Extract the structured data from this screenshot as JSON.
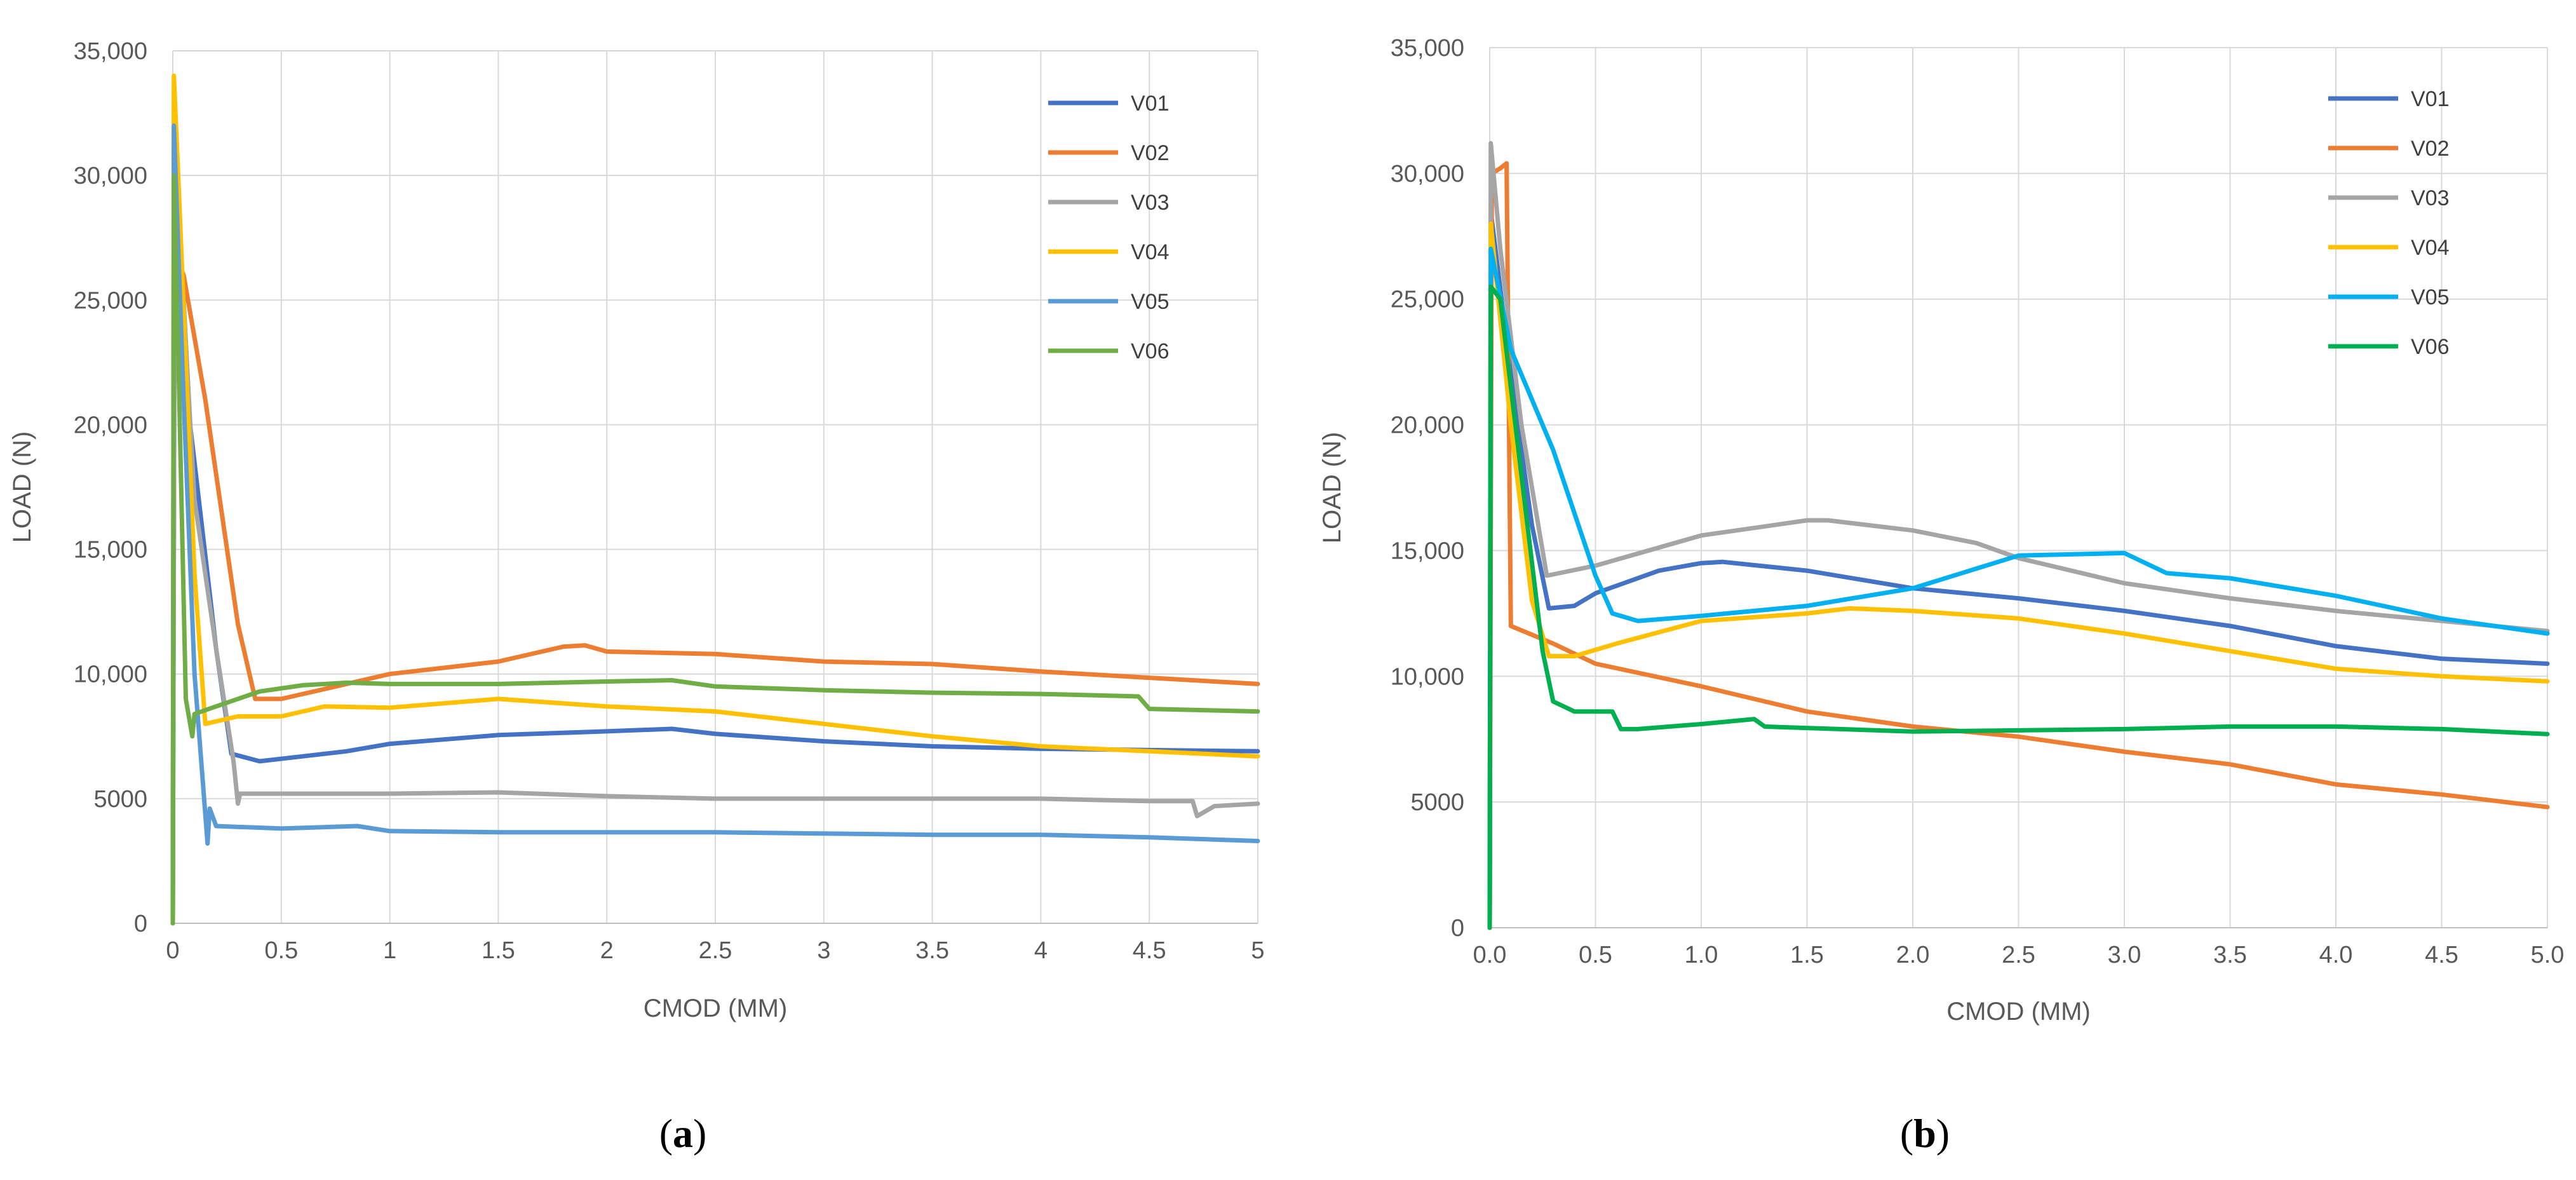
{
  "chart_data": [
    {
      "type": "line",
      "caption_open": "(",
      "caption_letter": "a",
      "caption_close": ")",
      "xlabel": "CMOD (MM)",
      "ylabel": "LOAD (N)",
      "xlim": [
        0,
        5
      ],
      "ylim": [
        0,
        35000
      ],
      "grid": true,
      "legend_position": "top-right",
      "xticks": [
        0,
        0.5,
        1,
        1.5,
        2,
        2.5,
        3,
        3.5,
        4,
        4.5,
        5
      ],
      "xtick_labels": [
        "0",
        "0.5",
        "1",
        "1.5",
        "2",
        "2.5",
        "3",
        "3.5",
        "4",
        "4.5",
        "5"
      ],
      "yticks": [
        0,
        5000,
        10000,
        15000,
        20000,
        25000,
        30000,
        35000
      ],
      "ytick_labels": [
        "0",
        "5000",
        "10,000",
        "15,000",
        "20,000",
        "25,000",
        "30,000",
        "35,000"
      ],
      "series": [
        {
          "name": "V01",
          "color": "#4472C4",
          "points": [
            [
              0,
              0
            ],
            [
              0.01,
              31500
            ],
            [
              0.08,
              20000
            ],
            [
              0.2,
              11000
            ],
            [
              0.27,
              6800
            ],
            [
              0.4,
              6500
            ],
            [
              0.6,
              6700
            ],
            [
              0.8,
              6900
            ],
            [
              1,
              7200
            ],
            [
              1.5,
              7550
            ],
            [
              2,
              7700
            ],
            [
              2.3,
              7800
            ],
            [
              2.5,
              7600
            ],
            [
              3,
              7300
            ],
            [
              3.5,
              7100
            ],
            [
              4,
              7000
            ],
            [
              4.5,
              6950
            ],
            [
              5,
              6900
            ]
          ]
        },
        {
          "name": "V02",
          "color": "#ED7D31",
          "points": [
            [
              0,
              0
            ],
            [
              0.005,
              27000
            ],
            [
              0.05,
              26000
            ],
            [
              0.15,
              21000
            ],
            [
              0.3,
              12000
            ],
            [
              0.38,
              9000
            ],
            [
              0.5,
              9000
            ],
            [
              0.7,
              9400
            ],
            [
              1,
              10000
            ],
            [
              1.5,
              10500
            ],
            [
              1.8,
              11100
            ],
            [
              1.9,
              11150
            ],
            [
              2,
              10900
            ],
            [
              2.5,
              10800
            ],
            [
              3,
              10500
            ],
            [
              3.5,
              10400
            ],
            [
              4,
              10100
            ],
            [
              4.5,
              9850
            ],
            [
              5,
              9600
            ]
          ]
        },
        {
          "name": "V03",
          "color": "#A5A5A5",
          "points": [
            [
              0,
              0
            ],
            [
              0.01,
              31000
            ],
            [
              0.1,
              17000
            ],
            [
              0.2,
              11000
            ],
            [
              0.28,
              6500
            ],
            [
              0.3,
              4800
            ],
            [
              0.31,
              5200
            ],
            [
              0.5,
              5200
            ],
            [
              1,
              5200
            ],
            [
              1.5,
              5250
            ],
            [
              2,
              5100
            ],
            [
              2.5,
              5000
            ],
            [
              3,
              5000
            ],
            [
              3.5,
              5000
            ],
            [
              4,
              5000
            ],
            [
              4.5,
              4900
            ],
            [
              4.7,
              4900
            ],
            [
              4.72,
              4300
            ],
            [
              4.8,
              4700
            ],
            [
              5,
              4800
            ]
          ]
        },
        {
          "name": "V04",
          "color": "#FFC000",
          "points": [
            [
              0,
              0
            ],
            [
              0.005,
              34000
            ],
            [
              0.03,
              29000
            ],
            [
              0.1,
              14000
            ],
            [
              0.15,
              8000
            ],
            [
              0.3,
              8300
            ],
            [
              0.5,
              8300
            ],
            [
              0.7,
              8700
            ],
            [
              1,
              8650
            ],
            [
              1.5,
              9000
            ],
            [
              2,
              8700
            ],
            [
              2.5,
              8500
            ],
            [
              3,
              8000
            ],
            [
              3.5,
              7500
            ],
            [
              4,
              7100
            ],
            [
              4.5,
              6900
            ],
            [
              5,
              6700
            ]
          ]
        },
        {
          "name": "V05",
          "color": "#5B9BD5",
          "points": [
            [
              0,
              0
            ],
            [
              0.005,
              32000
            ],
            [
              0.05,
              21000
            ],
            [
              0.1,
              10000
            ],
            [
              0.14,
              5500
            ],
            [
              0.16,
              3200
            ],
            [
              0.17,
              4600
            ],
            [
              0.2,
              3900
            ],
            [
              0.5,
              3800
            ],
            [
              0.85,
              3900
            ],
            [
              1,
              3700
            ],
            [
              1.5,
              3650
            ],
            [
              2,
              3650
            ],
            [
              2.5,
              3650
            ],
            [
              3,
              3600
            ],
            [
              3.5,
              3550
            ],
            [
              4,
              3550
            ],
            [
              4.5,
              3450
            ],
            [
              5,
              3300
            ]
          ]
        },
        {
          "name": "V06",
          "color": "#70AD47",
          "points": [
            [
              0,
              0
            ],
            [
              0.005,
              30000
            ],
            [
              0.02,
              25000
            ],
            [
              0.06,
              9000
            ],
            [
              0.09,
              7500
            ],
            [
              0.1,
              8400
            ],
            [
              0.2,
              8700
            ],
            [
              0.4,
              9300
            ],
            [
              0.6,
              9550
            ],
            [
              0.8,
              9650
            ],
            [
              1,
              9600
            ],
            [
              1.5,
              9600
            ],
            [
              2,
              9700
            ],
            [
              2.3,
              9750
            ],
            [
              2.5,
              9500
            ],
            [
              3,
              9350
            ],
            [
              3.5,
              9250
            ],
            [
              4,
              9200
            ],
            [
              4.45,
              9100
            ],
            [
              4.5,
              8600
            ],
            [
              5,
              8500
            ]
          ]
        }
      ]
    },
    {
      "type": "line",
      "caption_open": "(",
      "caption_letter": "b",
      "caption_close": ")",
      "xlabel": "CMOD (MM)",
      "ylabel": "LOAD (N)",
      "xlim": [
        0,
        5
      ],
      "ylim": [
        0,
        35000
      ],
      "grid": true,
      "legend_position": "top-right",
      "xticks": [
        0,
        0.5,
        1,
        1.5,
        2,
        2.5,
        3,
        3.5,
        4,
        4.5,
        5
      ],
      "xtick_labels": [
        "0.0",
        "0.5",
        "1.0",
        "1.5",
        "2.0",
        "2.5",
        "3.0",
        "3.5",
        "4.0",
        "4.5",
        "5.0"
      ],
      "yticks": [
        0,
        5000,
        10000,
        15000,
        20000,
        25000,
        30000,
        35000
      ],
      "ytick_labels": [
        "0",
        "5000",
        "10,000",
        "15,000",
        "20,000",
        "25,000",
        "30,000",
        "35,000"
      ],
      "series": [
        {
          "name": "V01",
          "color": "#4472C4",
          "points": [
            [
              0,
              0
            ],
            [
              0.005,
              28500
            ],
            [
              0.1,
              22000
            ],
            [
              0.2,
              16000
            ],
            [
              0.28,
              12700
            ],
            [
              0.4,
              12800
            ],
            [
              0.5,
              13300
            ],
            [
              0.8,
              14200
            ],
            [
              1,
              14500
            ],
            [
              1.1,
              14550
            ],
            [
              1.5,
              14200
            ],
            [
              2,
              13500
            ],
            [
              2.5,
              13100
            ],
            [
              3,
              12600
            ],
            [
              3.5,
              12000
            ],
            [
              4,
              11200
            ],
            [
              4.5,
              10700
            ],
            [
              5,
              10500
            ]
          ]
        },
        {
          "name": "V02",
          "color": "#ED7D31",
          "points": [
            [
              0,
              0
            ],
            [
              0.01,
              30000
            ],
            [
              0.05,
              30200
            ],
            [
              0.08,
              30400
            ],
            [
              0.1,
              12000
            ],
            [
              0.3,
              11300
            ],
            [
              0.5,
              10500
            ],
            [
              1,
              9600
            ],
            [
              1.5,
              8600
            ],
            [
              2,
              8000
            ],
            [
              2.5,
              7600
            ],
            [
              3,
              7000
            ],
            [
              3.5,
              6500
            ],
            [
              4,
              5700
            ],
            [
              4.5,
              5300
            ],
            [
              5,
              4800
            ]
          ]
        },
        {
          "name": "V03",
          "color": "#A5A5A5",
          "points": [
            [
              0,
              0
            ],
            [
              0.005,
              31200
            ],
            [
              0.05,
              27000
            ],
            [
              0.15,
              20000
            ],
            [
              0.27,
              14000
            ],
            [
              0.5,
              14400
            ],
            [
              1,
              15600
            ],
            [
              1.5,
              16200
            ],
            [
              1.6,
              16200
            ],
            [
              2,
              15800
            ],
            [
              2.3,
              15300
            ],
            [
              2.5,
              14700
            ],
            [
              3,
              13700
            ],
            [
              3.5,
              13100
            ],
            [
              4,
              12600
            ],
            [
              4.5,
              12200
            ],
            [
              5,
              11800
            ]
          ]
        },
        {
          "name": "V04",
          "color": "#FFC000",
          "points": [
            [
              0,
              0
            ],
            [
              0.005,
              28000
            ],
            [
              0.1,
              20000
            ],
            [
              0.2,
              13000
            ],
            [
              0.28,
              10800
            ],
            [
              0.4,
              10800
            ],
            [
              0.6,
              11300
            ],
            [
              1,
              12200
            ],
            [
              1.5,
              12500
            ],
            [
              1.7,
              12700
            ],
            [
              2,
              12600
            ],
            [
              2.5,
              12300
            ],
            [
              3,
              11700
            ],
            [
              3.5,
              11000
            ],
            [
              4,
              10300
            ],
            [
              4.5,
              10000
            ],
            [
              5,
              9800
            ]
          ]
        },
        {
          "name": "V05",
          "color": "#00B0F0",
          "points": [
            [
              0,
              0
            ],
            [
              0.005,
              27000
            ],
            [
              0.1,
              23000
            ],
            [
              0.3,
              19000
            ],
            [
              0.5,
              14000
            ],
            [
              0.58,
              12500
            ],
            [
              0.7,
              12200
            ],
            [
              1,
              12400
            ],
            [
              1.5,
              12800
            ],
            [
              2,
              13500
            ],
            [
              2.5,
              14800
            ],
            [
              3,
              14900
            ],
            [
              3.2,
              14100
            ],
            [
              3.5,
              13900
            ],
            [
              4,
              13200
            ],
            [
              4.5,
              12300
            ],
            [
              5,
              11700
            ]
          ]
        },
        {
          "name": "V06",
          "color": "#00B050",
          "points": [
            [
              0,
              0
            ],
            [
              0.005,
              25500
            ],
            [
              0.05,
              25000
            ],
            [
              0.15,
              18000
            ],
            [
              0.25,
              11000
            ],
            [
              0.3,
              9000
            ],
            [
              0.4,
              8600
            ],
            [
              0.58,
              8600
            ],
            [
              0.62,
              7900
            ],
            [
              0.7,
              7900
            ],
            [
              1,
              8100
            ],
            [
              1.25,
              8300
            ],
            [
              1.3,
              8000
            ],
            [
              2,
              7800
            ],
            [
              2.5,
              7850
            ],
            [
              3,
              7900
            ],
            [
              3.5,
              8000
            ],
            [
              4,
              8000
            ],
            [
              4.5,
              7900
            ],
            [
              5,
              7700
            ]
          ]
        }
      ]
    }
  ]
}
